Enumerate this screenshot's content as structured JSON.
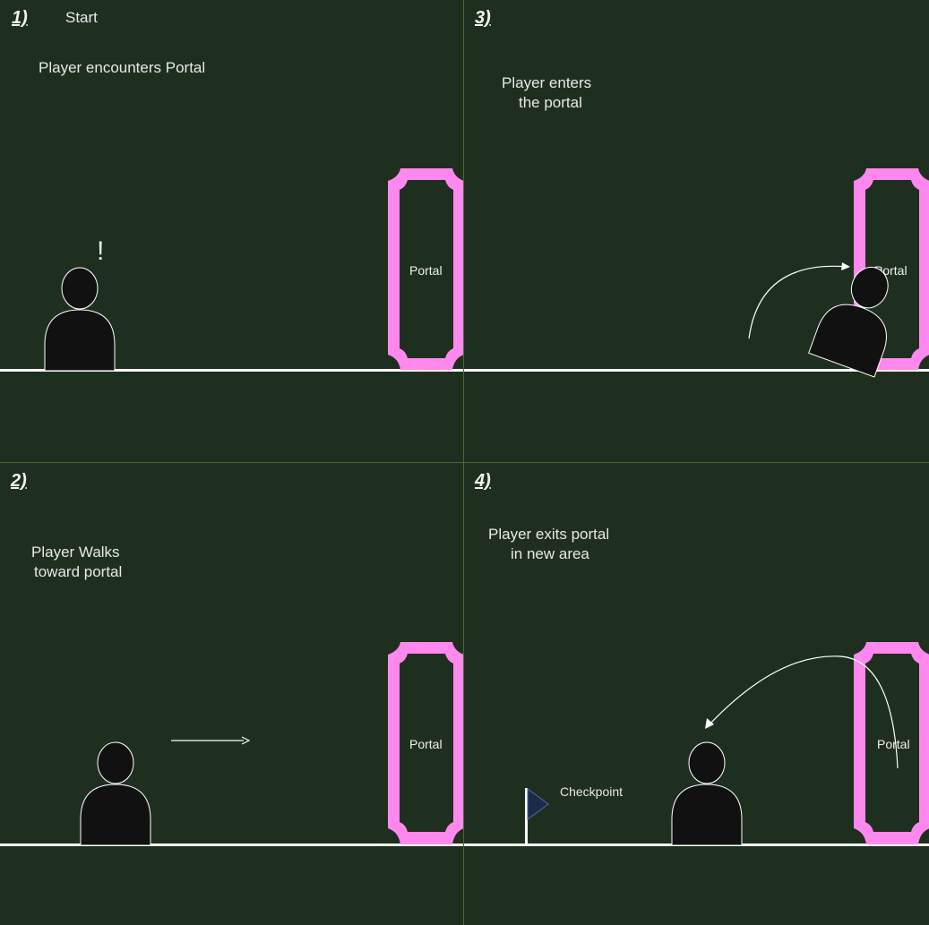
{
  "panels": {
    "p1": {
      "number": "1)",
      "title": "Start",
      "caption": "Player encounters Portal",
      "exclaim": "!",
      "portal_label": "Portal"
    },
    "p2": {
      "number": "2)",
      "caption_line1": "Player Walks",
      "caption_line2": "toward portal",
      "portal_label": "Portal"
    },
    "p3": {
      "number": "3)",
      "caption_line1": "Player enters",
      "caption_line2": "the portal",
      "portal_label": "Portal"
    },
    "p4": {
      "number": "4)",
      "caption_line1": "Player exits portal",
      "caption_line2": "in new area",
      "checkpoint_label": "Checkpoint",
      "portal_label": "Portal"
    }
  },
  "colors": {
    "background": "#1f2f1f",
    "divider": "#4a6a30",
    "portal": "#ff88ee",
    "player": "#111111",
    "ground": "#ffffff",
    "flag": "#1c2a4a"
  }
}
